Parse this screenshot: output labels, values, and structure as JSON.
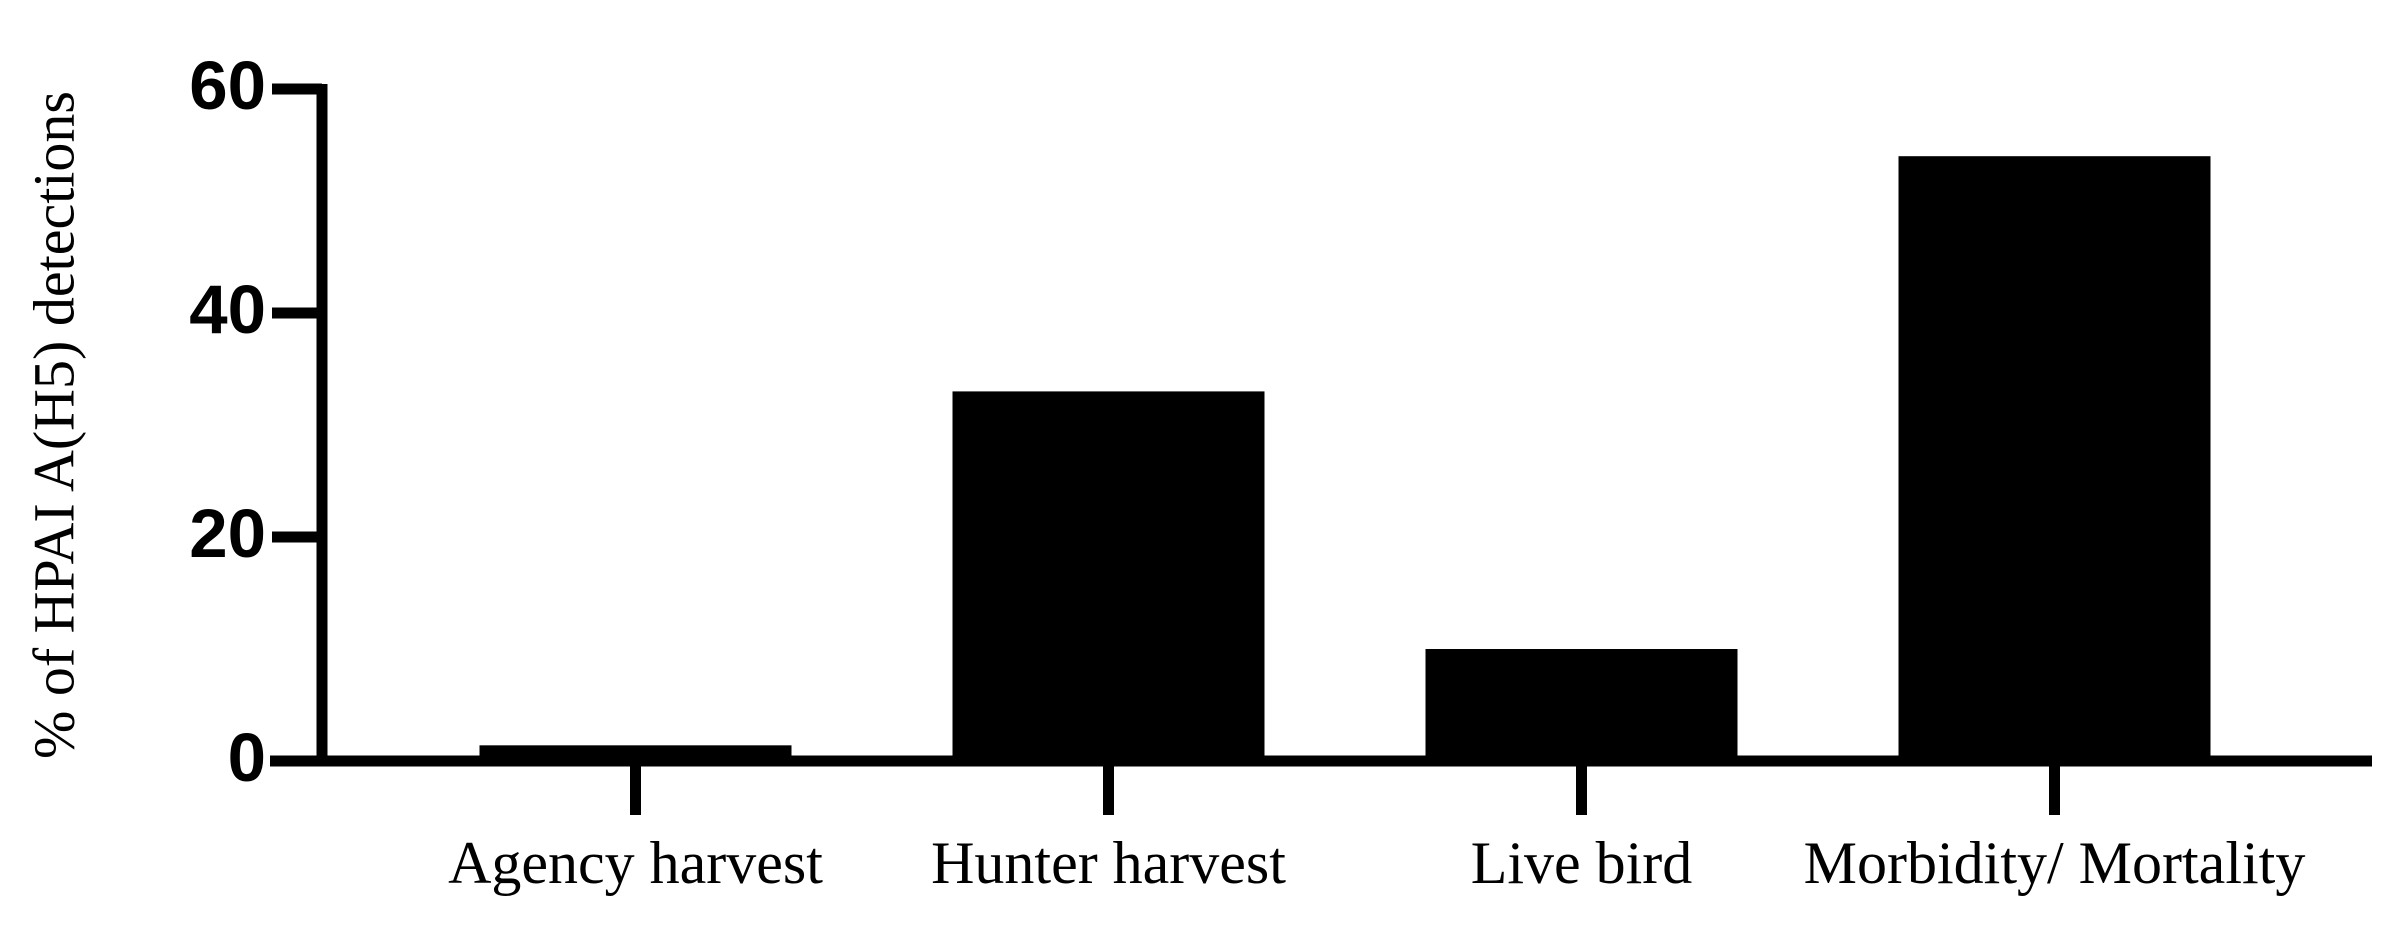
{
  "chart_data": {
    "type": "bar",
    "y_label": "% of HPAI A(H5) detections",
    "categories": [
      "Agency harvest",
      "Hunter harvest",
      "Live bird",
      "Morbidity/ Mortality"
    ],
    "values": [
      1.4,
      33,
      10,
      54
    ],
    "color": "#000000",
    "ylim": [
      0,
      60
    ],
    "yticks": [
      0,
      20,
      40,
      60
    ]
  }
}
